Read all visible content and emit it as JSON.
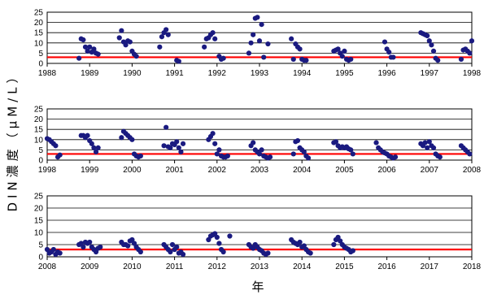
{
  "chart_data": {
    "type": "scatter",
    "ylabel": "DIN濃度（μM/L）",
    "xlabel": "年",
    "reference_line": {
      "value": 3,
      "color": "#ff0000"
    },
    "marker_color": "#1a1a80",
    "grid": true,
    "panels": [
      {
        "xlim": [
          1988,
          1998
        ],
        "ylim": [
          0,
          25
        ],
        "xticks": [
          "1988",
          "1989",
          "1990",
          "1991",
          "1992",
          "1993",
          "1994",
          "1995",
          "1996",
          "1997",
          "1998"
        ],
        "yticks": [
          "0",
          "5",
          "10",
          "15",
          "20",
          "25"
        ],
        "points": [
          [
            1988.75,
            2.5
          ],
          [
            1988.8,
            12
          ],
          [
            1988.85,
            11.5
          ],
          [
            1988.9,
            8
          ],
          [
            1988.95,
            6
          ],
          [
            1989.0,
            8
          ],
          [
            1989.05,
            5.5
          ],
          [
            1989.1,
            7
          ],
          [
            1989.15,
            5
          ],
          [
            1989.2,
            4.5
          ],
          [
            1989.7,
            12.5
          ],
          [
            1989.75,
            16
          ],
          [
            1989.8,
            10.5
          ],
          [
            1989.85,
            9
          ],
          [
            1989.9,
            11
          ],
          [
            1989.95,
            10.5
          ],
          [
            1990.0,
            6
          ],
          [
            1990.05,
            4.5
          ],
          [
            1990.1,
            3.5
          ],
          [
            1990.65,
            8
          ],
          [
            1990.7,
            13
          ],
          [
            1990.75,
            15
          ],
          [
            1990.8,
            16.5
          ],
          [
            1990.85,
            14
          ],
          [
            1991.05,
            1.5
          ],
          [
            1991.1,
            1
          ],
          [
            1991.7,
            8
          ],
          [
            1991.75,
            12
          ],
          [
            1991.8,
            12.5
          ],
          [
            1991.85,
            14
          ],
          [
            1991.9,
            15
          ],
          [
            1991.95,
            12
          ],
          [
            1992.05,
            3.5
          ],
          [
            1992.1,
            2
          ],
          [
            1992.15,
            2.5
          ],
          [
            1992.75,
            5
          ],
          [
            1992.8,
            10
          ],
          [
            1992.85,
            14
          ],
          [
            1992.9,
            22
          ],
          [
            1992.95,
            22.5
          ],
          [
            1993.0,
            11
          ],
          [
            1993.05,
            19
          ],
          [
            1993.1,
            3
          ],
          [
            1993.2,
            9.5
          ],
          [
            1993.75,
            12
          ],
          [
            1993.8,
            2
          ],
          [
            1993.85,
            9.5
          ],
          [
            1993.9,
            8
          ],
          [
            1993.95,
            7
          ],
          [
            1994.0,
            2
          ],
          [
            1994.05,
            1.5
          ],
          [
            1994.1,
            1.5
          ],
          [
            1994.75,
            6
          ],
          [
            1994.8,
            6.5
          ],
          [
            1994.85,
            7
          ],
          [
            1994.9,
            5
          ],
          [
            1994.95,
            3.5
          ],
          [
            1995.0,
            6
          ],
          [
            1995.05,
            2
          ],
          [
            1995.1,
            1.5
          ],
          [
            1995.15,
            2
          ],
          [
            1995.95,
            10.5
          ],
          [
            1996.0,
            7
          ],
          [
            1996.05,
            5.5
          ],
          [
            1996.1,
            3
          ],
          [
            1996.15,
            3
          ],
          [
            1996.8,
            15
          ],
          [
            1996.85,
            14.5
          ],
          [
            1996.9,
            14
          ],
          [
            1996.95,
            13.5
          ],
          [
            1997.0,
            11
          ],
          [
            1997.05,
            9
          ],
          [
            1997.1,
            6
          ],
          [
            1997.15,
            2.5
          ],
          [
            1997.2,
            1.5
          ],
          [
            1997.75,
            2
          ],
          [
            1997.8,
            6.5
          ],
          [
            1997.85,
            7
          ],
          [
            1997.9,
            6
          ],
          [
            1997.95,
            5
          ],
          [
            1998.0,
            11
          ]
        ]
      },
      {
        "xlim": [
          1998,
          2008
        ],
        "ylim": [
          0,
          25
        ],
        "xticks": [
          "1998",
          "1999",
          "2000",
          "2001",
          "2002",
          "2003",
          "2004",
          "2005",
          "2006",
          "2007",
          "2008"
        ],
        "yticks": [
          "0",
          "5",
          "10",
          "15",
          "20",
          "25"
        ],
        "points": [
          [
            1998.0,
            10.5
          ],
          [
            1998.05,
            10
          ],
          [
            1998.1,
            9
          ],
          [
            1998.15,
            8
          ],
          [
            1998.2,
            7
          ],
          [
            1998.25,
            1.5
          ],
          [
            1998.3,
            2.5
          ],
          [
            1998.8,
            12
          ],
          [
            1998.85,
            12
          ],
          [
            1998.9,
            11
          ],
          [
            1998.95,
            12
          ],
          [
            1999.0,
            9.5
          ],
          [
            1999.05,
            8
          ],
          [
            1999.1,
            6
          ],
          [
            1999.15,
            4
          ],
          [
            1999.2,
            6
          ],
          [
            1999.75,
            11
          ],
          [
            1999.8,
            14
          ],
          [
            1999.85,
            13
          ],
          [
            1999.9,
            12
          ],
          [
            1999.95,
            11
          ],
          [
            2000.0,
            10
          ],
          [
            2000.05,
            3
          ],
          [
            2000.1,
            2
          ],
          [
            2000.15,
            1.5
          ],
          [
            2000.2,
            2
          ],
          [
            2000.75,
            7
          ],
          [
            2000.8,
            16
          ],
          [
            2000.85,
            6.5
          ],
          [
            2000.9,
            6
          ],
          [
            2000.95,
            8
          ],
          [
            2001.0,
            7.5
          ],
          [
            2001.05,
            9
          ],
          [
            2001.1,
            6
          ],
          [
            2001.15,
            4
          ],
          [
            2001.2,
            8
          ],
          [
            2001.8,
            10
          ],
          [
            2001.85,
            11.5
          ],
          [
            2001.9,
            13
          ],
          [
            2001.95,
            8
          ],
          [
            2002.0,
            3
          ],
          [
            2002.05,
            5
          ],
          [
            2002.1,
            2
          ],
          [
            2002.15,
            1.5
          ],
          [
            2002.2,
            1.5
          ],
          [
            2002.25,
            2
          ],
          [
            2002.8,
            7
          ],
          [
            2002.85,
            8.5
          ],
          [
            2002.9,
            5
          ],
          [
            2002.95,
            4
          ],
          [
            2003.0,
            3
          ],
          [
            2003.05,
            5
          ],
          [
            2003.1,
            2
          ],
          [
            2003.15,
            1.5
          ],
          [
            2003.2,
            1
          ],
          [
            2003.25,
            1.5
          ],
          [
            2003.8,
            3
          ],
          [
            2003.85,
            9
          ],
          [
            2003.9,
            9.5
          ],
          [
            2003.95,
            6
          ],
          [
            2004.0,
            5
          ],
          [
            2004.05,
            4
          ],
          [
            2004.1,
            2
          ],
          [
            2004.15,
            1
          ],
          [
            2004.75,
            8.5
          ],
          [
            2004.8,
            9
          ],
          [
            2004.85,
            7
          ],
          [
            2004.9,
            6
          ],
          [
            2004.95,
            6.5
          ],
          [
            2005.0,
            6
          ],
          [
            2005.05,
            6.5
          ],
          [
            2005.1,
            5.5
          ],
          [
            2005.15,
            5
          ],
          [
            2005.2,
            3
          ],
          [
            2005.75,
            8.5
          ],
          [
            2005.8,
            6
          ],
          [
            2005.85,
            5
          ],
          [
            2005.9,
            4
          ],
          [
            2005.95,
            3.5
          ],
          [
            2006.0,
            3
          ],
          [
            2006.05,
            2
          ],
          [
            2006.1,
            1.5
          ],
          [
            2006.15,
            1
          ],
          [
            2006.2,
            1.5
          ],
          [
            2006.8,
            8
          ],
          [
            2006.85,
            7
          ],
          [
            2006.9,
            8.5
          ],
          [
            2006.95,
            6
          ],
          [
            2007.0,
            9
          ],
          [
            2007.05,
            7
          ],
          [
            2007.1,
            6
          ],
          [
            2007.15,
            3
          ],
          [
            2007.2,
            2
          ],
          [
            2007.25,
            1.5
          ],
          [
            2007.75,
            7
          ],
          [
            2007.8,
            6
          ],
          [
            2007.85,
            5
          ],
          [
            2007.9,
            4
          ],
          [
            2007.95,
            3
          ]
        ]
      },
      {
        "xlim": [
          2008,
          2018
        ],
        "ylim": [
          0,
          25
        ],
        "xticks": [
          "2008",
          "2009",
          "2010",
          "2011",
          "2012",
          "2013",
          "2014",
          "2015",
          "2016",
          "2017",
          "2018"
        ],
        "yticks": [
          "0",
          "5",
          "10",
          "15",
          "20",
          "25"
        ],
        "points": [
          [
            2008.0,
            3
          ],
          [
            2008.05,
            1.5
          ],
          [
            2008.1,
            2
          ],
          [
            2008.15,
            3
          ],
          [
            2008.2,
            1
          ],
          [
            2008.25,
            2
          ],
          [
            2008.3,
            1.5
          ],
          [
            2008.75,
            5
          ],
          [
            2008.8,
            5.5
          ],
          [
            2008.85,
            4
          ],
          [
            2008.9,
            6
          ],
          [
            2008.95,
            5.5
          ],
          [
            2009.0,
            6
          ],
          [
            2009.05,
            4
          ],
          [
            2009.1,
            3
          ],
          [
            2009.15,
            2
          ],
          [
            2009.2,
            3.5
          ],
          [
            2009.25,
            4
          ],
          [
            2009.75,
            6
          ],
          [
            2009.8,
            5
          ],
          [
            2009.85,
            5
          ],
          [
            2009.9,
            4.5
          ],
          [
            2009.95,
            6.5
          ],
          [
            2010.0,
            7
          ],
          [
            2010.05,
            5.5
          ],
          [
            2010.1,
            4
          ],
          [
            2010.15,
            3
          ],
          [
            2010.2,
            2
          ],
          [
            2010.75,
            5
          ],
          [
            2010.8,
            4
          ],
          [
            2010.85,
            3
          ],
          [
            2010.9,
            2
          ],
          [
            2010.95,
            5
          ],
          [
            2011.0,
            3
          ],
          [
            2011.05,
            4
          ],
          [
            2011.1,
            1.5
          ],
          [
            2011.15,
            2
          ],
          [
            2011.2,
            1
          ],
          [
            2011.8,
            7
          ],
          [
            2011.85,
            8.5
          ],
          [
            2011.9,
            9
          ],
          [
            2011.95,
            9.5
          ],
          [
            2012.0,
            8
          ],
          [
            2012.05,
            5.5
          ],
          [
            2012.1,
            3
          ],
          [
            2012.15,
            2
          ],
          [
            2012.3,
            8.5
          ],
          [
            2012.75,
            5
          ],
          [
            2012.8,
            4
          ],
          [
            2012.85,
            3.5
          ],
          [
            2012.9,
            5
          ],
          [
            2012.95,
            4
          ],
          [
            2013.0,
            3
          ],
          [
            2013.05,
            2.5
          ],
          [
            2013.1,
            1.5
          ],
          [
            2013.15,
            1
          ],
          [
            2013.2,
            1.5
          ],
          [
            2013.75,
            7
          ],
          [
            2013.8,
            6
          ],
          [
            2013.85,
            5.5
          ],
          [
            2013.9,
            5
          ],
          [
            2013.95,
            6
          ],
          [
            2014.0,
            4
          ],
          [
            2014.05,
            4.5
          ],
          [
            2014.1,
            3
          ],
          [
            2014.15,
            2
          ],
          [
            2014.2,
            1.5
          ],
          [
            2014.75,
            5
          ],
          [
            2014.8,
            7
          ],
          [
            2014.85,
            8
          ],
          [
            2014.9,
            6.5
          ],
          [
            2014.95,
            5
          ],
          [
            2015.0,
            4
          ],
          [
            2015.05,
            3.5
          ],
          [
            2015.1,
            3
          ],
          [
            2015.15,
            2
          ],
          [
            2015.2,
            2.5
          ]
        ]
      }
    ]
  }
}
